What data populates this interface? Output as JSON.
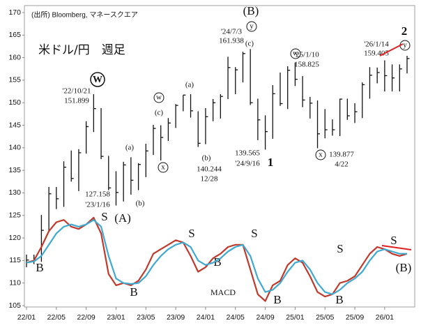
{
  "chart_data": {
    "type": "ohlc",
    "annotations": [
      "(出所) Bloomberg, マネースクエア",
      "米ドル/円　週足",
      "(B)",
      "y",
      "'24/7/3",
      "161.938",
      "(c)",
      "W",
      "'22/10/21",
      "151.899",
      "w",
      "(c)",
      "x",
      "(a)",
      "(b)",
      "140.244",
      "12/28",
      "(a)",
      "(b)",
      "127.158",
      "'23/1/16",
      "(A)",
      "139.565",
      "'24/9/16",
      "1",
      "w",
      "'25/1/10",
      "158.825",
      "x",
      "139.877",
      "4/22",
      "'26/1/14",
      "159.405",
      "2",
      "y",
      "S",
      "S",
      "S",
      "S",
      "S",
      "B",
      "B",
      "B",
      "B",
      "B",
      "(B)",
      "MACD"
    ],
    "categories": [
      "22/01",
      null,
      null,
      null,
      "22/05",
      null,
      null,
      null,
      "22/09",
      null,
      null,
      null,
      "23/01",
      null,
      null,
      null,
      "23/05",
      null,
      null,
      null,
      "23/09",
      null,
      null,
      null,
      "24/01",
      null,
      null,
      null,
      "24/05",
      null,
      null,
      null,
      "24/09",
      null,
      null,
      null,
      "25/01",
      null,
      null,
      null,
      "25/05",
      null,
      null,
      null,
      "25/09",
      null,
      null,
      null,
      "26/01",
      null,
      null,
      null
    ],
    "high": [
      116.3,
      116.3,
      125.1,
      131.3,
      131.3,
      137.0,
      139.4,
      139.7,
      145.9,
      151.9,
      148.8,
      138.2,
      134.8,
      136.9,
      137.9,
      136.6,
      140.9,
      145.1,
      145.0,
      146.6,
      149.7,
      151.7,
      151.9,
      148.1,
      148.8,
      150.8,
      151.9,
      160.2,
      157.9,
      161.3,
      161.9,
      150.9,
      147.2,
      153.9,
      156.7,
      158.1,
      158.9,
      155.9,
      151.3,
      150.5,
      148.6,
      146.3,
      150.9,
      150.9,
      149.9,
      154.5,
      157.9,
      157.8,
      159.4,
      158.5,
      158.5,
      160.4
    ],
    "low": [
      113.5,
      114.2,
      114.7,
      121.3,
      126.4,
      126.9,
      132.5,
      130.4,
      138.7,
      143.5,
      137.5,
      130.6,
      127.2,
      128.1,
      129.6,
      130.6,
      133.5,
      138.4,
      137.2,
      141.5,
      144.4,
      148.1,
      146.7,
      140.2,
      140.8,
      145.9,
      146.5,
      150.8,
      151.9,
      154.5,
      149.5,
      141.7,
      139.6,
      142.0,
      149.3,
      148.6,
      153.7,
      149.0,
      146.5,
      139.9,
      142.1,
      142.7,
      142.6,
      146.2,
      145.5,
      146.6,
      150.9,
      154.3,
      152.5,
      152.5,
      152.5,
      156.5
    ],
    "close": [
      115.1,
      115.0,
      121.7,
      129.8,
      128.7,
      135.7,
      133.2,
      138.9,
      144.7,
      148.7,
      138.1,
      131.1,
      130.1,
      136.2,
      132.8,
      136.3,
      139.3,
      144.3,
      142.3,
      145.5,
      149.4,
      151.7,
      148.2,
      141.0,
      146.9,
      150.0,
      151.4,
      157.8,
      157.3,
      160.9,
      150.0,
      146.2,
      143.6,
      152.0,
      149.8,
      157.2,
      155.2,
      150.6,
      149.9,
      143.1,
      144.0,
      144.0,
      150.8,
      147.1,
      148.0,
      154.0,
      156.1,
      156.7,
      156.0,
      155.5,
      157.5,
      159.8
    ],
    "color": "#111111",
    "lines": [
      {
        "color": "#c0392b",
        "values": [
          114.5,
          115,
          118,
          121.5,
          123.5,
          124,
          122.5,
          122,
          123,
          124.5,
          121,
          112,
          109.5,
          110,
          109.5,
          110.5,
          113,
          116.5,
          117.5,
          118.5,
          119.5,
          119,
          116,
          112.5,
          113.5,
          115.5,
          116.5,
          118,
          118.5,
          118.5,
          113,
          107.5,
          106,
          109.5,
          110.5,
          114,
          115.5,
          114.5,
          111.5,
          108,
          107,
          107.5,
          110,
          110.5,
          111.5,
          114,
          116.5,
          118,
          117.5,
          116.5,
          116,
          116.5
        ]
      },
      {
        "color": "#3fa9d0",
        "values": [
          114.5,
          114.8,
          116,
          118.5,
          121,
          122.5,
          123,
          122.5,
          123,
          124,
          122.5,
          116,
          111,
          110,
          109.8,
          110,
          111.5,
          114,
          116,
          117.5,
          118.5,
          119,
          118,
          115,
          114,
          114.5,
          115.5,
          117,
          118,
          118.5,
          116,
          111,
          108,
          108.5,
          110,
          112.5,
          114.5,
          115,
          113,
          110,
          108,
          107.5,
          108.5,
          110,
          111,
          112.5,
          115,
          117,
          117.5,
          117,
          116.5,
          116.5
        ]
      }
    ],
    "ylim": [
      105,
      170
    ],
    "yticks": [
      105,
      110,
      115,
      120,
      125,
      130,
      135,
      140,
      145,
      150,
      155,
      160,
      165,
      170
    ]
  }
}
